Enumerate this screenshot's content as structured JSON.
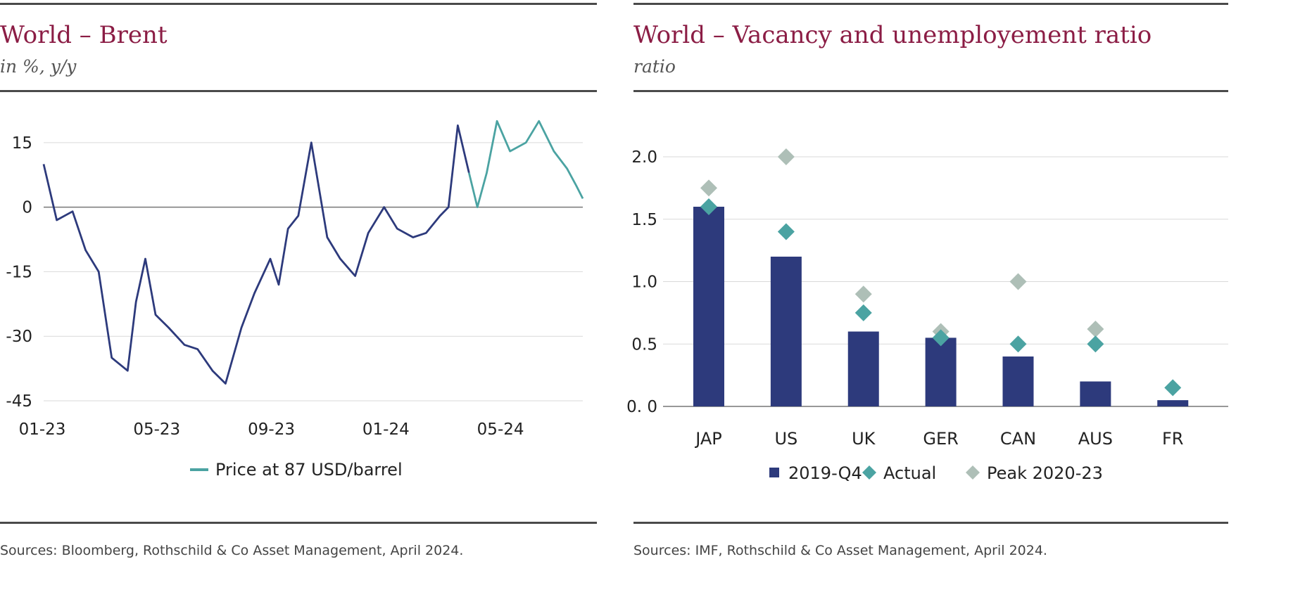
{
  "colors": {
    "title": "#8b1d45",
    "navy": "#2d3a7c",
    "teal": "#4ba3a2",
    "gray_diamond": "#aebfb7",
    "grid": "#d9d9d9",
    "rule": "#4a4a4a"
  },
  "left": {
    "title": "World – Brent",
    "subtitle": "in %, y/y",
    "source": "Sources: Bloomberg, Rothschild & Co Asset Management, April 2024."
  },
  "right": {
    "title": "World – Vacancy and unemployement  ratio",
    "subtitle": "ratio",
    "source": "Sources: IMF, Rothschild & Co Asset Management, April 2024."
  },
  "chart_data": [
    {
      "type": "line",
      "title": "World – Brent",
      "subtitle": "in %, y/y",
      "x_tick_labels": [
        "01-23",
        "05-23",
        "09-23",
        "01-24",
        "05-24"
      ],
      "y_tick_labels": [
        "15",
        "0",
        "-15",
        "-30",
        "-45"
      ],
      "y_ticks": [
        15,
        0,
        -15,
        -30,
        -45
      ],
      "ylim": [
        -45,
        22
      ],
      "xlim": [
        "2023-01",
        "2024-08"
      ],
      "grid": true,
      "legend_position": "bottom-center",
      "series": [
        {
          "color": "#2d3a7c",
          "x": [
            "2023-01",
            "2023-01-15",
            "2023-02",
            "2023-02-15",
            "2023-03",
            "2023-03-15",
            "2023-04",
            "2023-04-10",
            "2023-04-20",
            "2023-05",
            "2023-05-15",
            "2023-06",
            "2023-06-15",
            "2023-07",
            "2023-07-15",
            "2023-08",
            "2023-08-15",
            "2023-09",
            "2023-09-10",
            "2023-09-20",
            "2023-10",
            "2023-10-15",
            "2023-11",
            "2023-11-15",
            "2023-12",
            "2023-12-15",
            "2024-01",
            "2024-01-15",
            "2024-02",
            "2024-02-15",
            "2024-03",
            "2024-03-10",
            "2024-03-20",
            "2024-04"
          ],
          "y": [
            10,
            -3,
            -1,
            -10,
            -15,
            -35,
            -38,
            -22,
            -12,
            -25,
            -28,
            -32,
            -33,
            -38,
            -41,
            -28,
            -20,
            -12,
            -18,
            -5,
            -2,
            15,
            -7,
            -12,
            -16,
            -6,
            0,
            -5,
            -7,
            -6,
            -2,
            0,
            19,
            8
          ]
        },
        {
          "name": "Price at 87 USD/barrel",
          "color": "#4ba3a2",
          "x": [
            "2024-04",
            "2024-04-10",
            "2024-04-20",
            "2024-05",
            "2024-05-15",
            "2024-06",
            "2024-06-15",
            "2024-07",
            "2024-07-15",
            "2024-07-25",
            "2024-08"
          ],
          "y": [
            8,
            0,
            8,
            20,
            13,
            15,
            20,
            13,
            9,
            5,
            2
          ]
        }
      ]
    },
    {
      "type": "bar",
      "title": "World – Vacancy and unemployement  ratio",
      "subtitle": "ratio",
      "categories": [
        "JAP",
        "US",
        "UK",
        "GER",
        "CAN",
        "AUS",
        "FR"
      ],
      "y_tick_labels": [
        "2.0",
        "1.5",
        "1.0",
        "0.5",
        "0. 0"
      ],
      "y_ticks": [
        2.0,
        1.5,
        1.0,
        0.5,
        0.0
      ],
      "ylim": [
        0,
        2.2
      ],
      "grid": true,
      "legend_position": "bottom-center",
      "series": [
        {
          "name": "2019-Q4",
          "kind": "bar",
          "color": "#2d3a7c",
          "values": [
            1.6,
            1.2,
            0.6,
            0.55,
            0.4,
            0.2,
            0.05
          ]
        },
        {
          "name": "Actual",
          "kind": "diamond",
          "color": "#4ba3a2",
          "values": [
            1.6,
            1.4,
            0.75,
            0.55,
            0.5,
            0.5,
            0.15
          ]
        },
        {
          "name": "Peak 2020-23",
          "kind": "diamond",
          "color": "#aebfb7",
          "values": [
            1.75,
            2.0,
            0.9,
            0.6,
            1.0,
            0.62,
            null
          ]
        }
      ]
    }
  ]
}
